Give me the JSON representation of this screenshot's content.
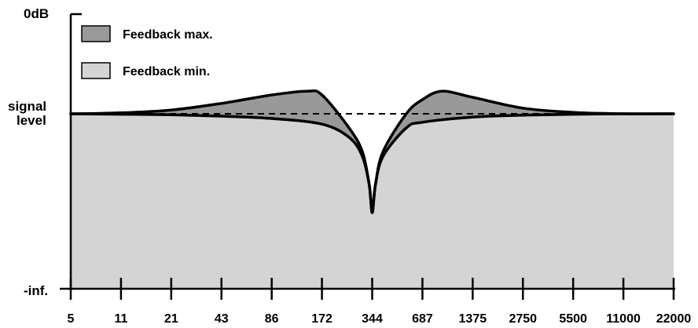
{
  "chart_data": {
    "type": "area",
    "title": "",
    "xlabel": "",
    "ylabel": "",
    "x_scale": "log",
    "x_ticks": [
      "5",
      "11",
      "21",
      "43",
      "86",
      "172",
      "344",
      "687",
      "1375",
      "2750",
      "5500",
      "11000",
      "22000"
    ],
    "y_labels": {
      "top": "0dB",
      "reference_line1": "signal",
      "reference_line2": "level",
      "bottom": "-inf."
    },
    "reference_line": {
      "style": "dashed",
      "level": 0
    },
    "notch_center": 344,
    "legend": {
      "placement": "top-left",
      "entries": [
        {
          "label": "Feedback max.",
          "color": "#999999"
        },
        {
          "label": "Feedback min.",
          "color": "#d4d4d4"
        }
      ]
    },
    "series": [
      {
        "name": "Feedback max.",
        "color": "#999999",
        "x": [
          5,
          11,
          21,
          43,
          86,
          140,
          172,
          250,
          300,
          330,
          344,
          360,
          400,
          550,
          687,
          900,
          1375,
          2750,
          5500,
          11000,
          22000
        ],
        "y": [
          0,
          0.02,
          0.08,
          0.22,
          0.4,
          0.48,
          0.4,
          -0.3,
          -0.8,
          -1.5,
          -2.1,
          -1.5,
          -0.8,
          0,
          0.3,
          0.48,
          0.35,
          0.12,
          0.03,
          0,
          0
        ]
      },
      {
        "name": "Feedback min.",
        "color": "#d4d4d4",
        "x": [
          5,
          11,
          21,
          43,
          86,
          172,
          250,
          300,
          330,
          344,
          360,
          400,
          550,
          687,
          1375,
          2750,
          5500,
          11000,
          22000
        ],
        "y": [
          0,
          -0.01,
          -0.02,
          -0.05,
          -0.1,
          -0.22,
          -0.5,
          -0.9,
          -1.5,
          -2.1,
          -1.5,
          -0.9,
          -0.3,
          -0.18,
          -0.07,
          -0.03,
          -0.01,
          0,
          0
        ]
      }
    ],
    "colors": {
      "axis": "#000000",
      "max_fill": "#999999",
      "min_fill": "#d4d4d4"
    }
  }
}
